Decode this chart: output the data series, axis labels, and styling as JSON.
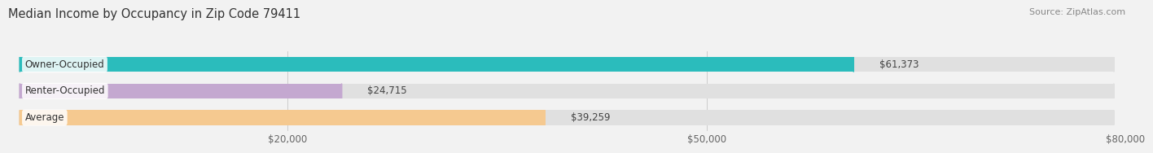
{
  "title": "Median Income by Occupancy in Zip Code 79411",
  "source": "Source: ZipAtlas.com",
  "categories": [
    "Owner-Occupied",
    "Renter-Occupied",
    "Average"
  ],
  "values": [
    61373,
    24715,
    39259
  ],
  "bar_colors": [
    "#2bbcbc",
    "#c4a8d0",
    "#f5c990"
  ],
  "bar_labels": [
    "$61,373",
    "$24,715",
    "$39,259"
  ],
  "xlim": [
    0,
    80000
  ],
  "xticks": [
    20000,
    50000,
    80000
  ],
  "xticklabels": [
    "$20,000",
    "$50,000",
    "$80,000"
  ],
  "bar_height": 0.56,
  "title_fontsize": 10.5,
  "source_fontsize": 8,
  "label_fontsize": 8.5,
  "tick_fontsize": 8.5,
  "cat_fontsize": 8.5,
  "background_color": "#f2f2f2",
  "bar_background_color": "#e0e0e0",
  "bar_label_inside_color": "#ffffff",
  "grid_color": "#cccccc"
}
